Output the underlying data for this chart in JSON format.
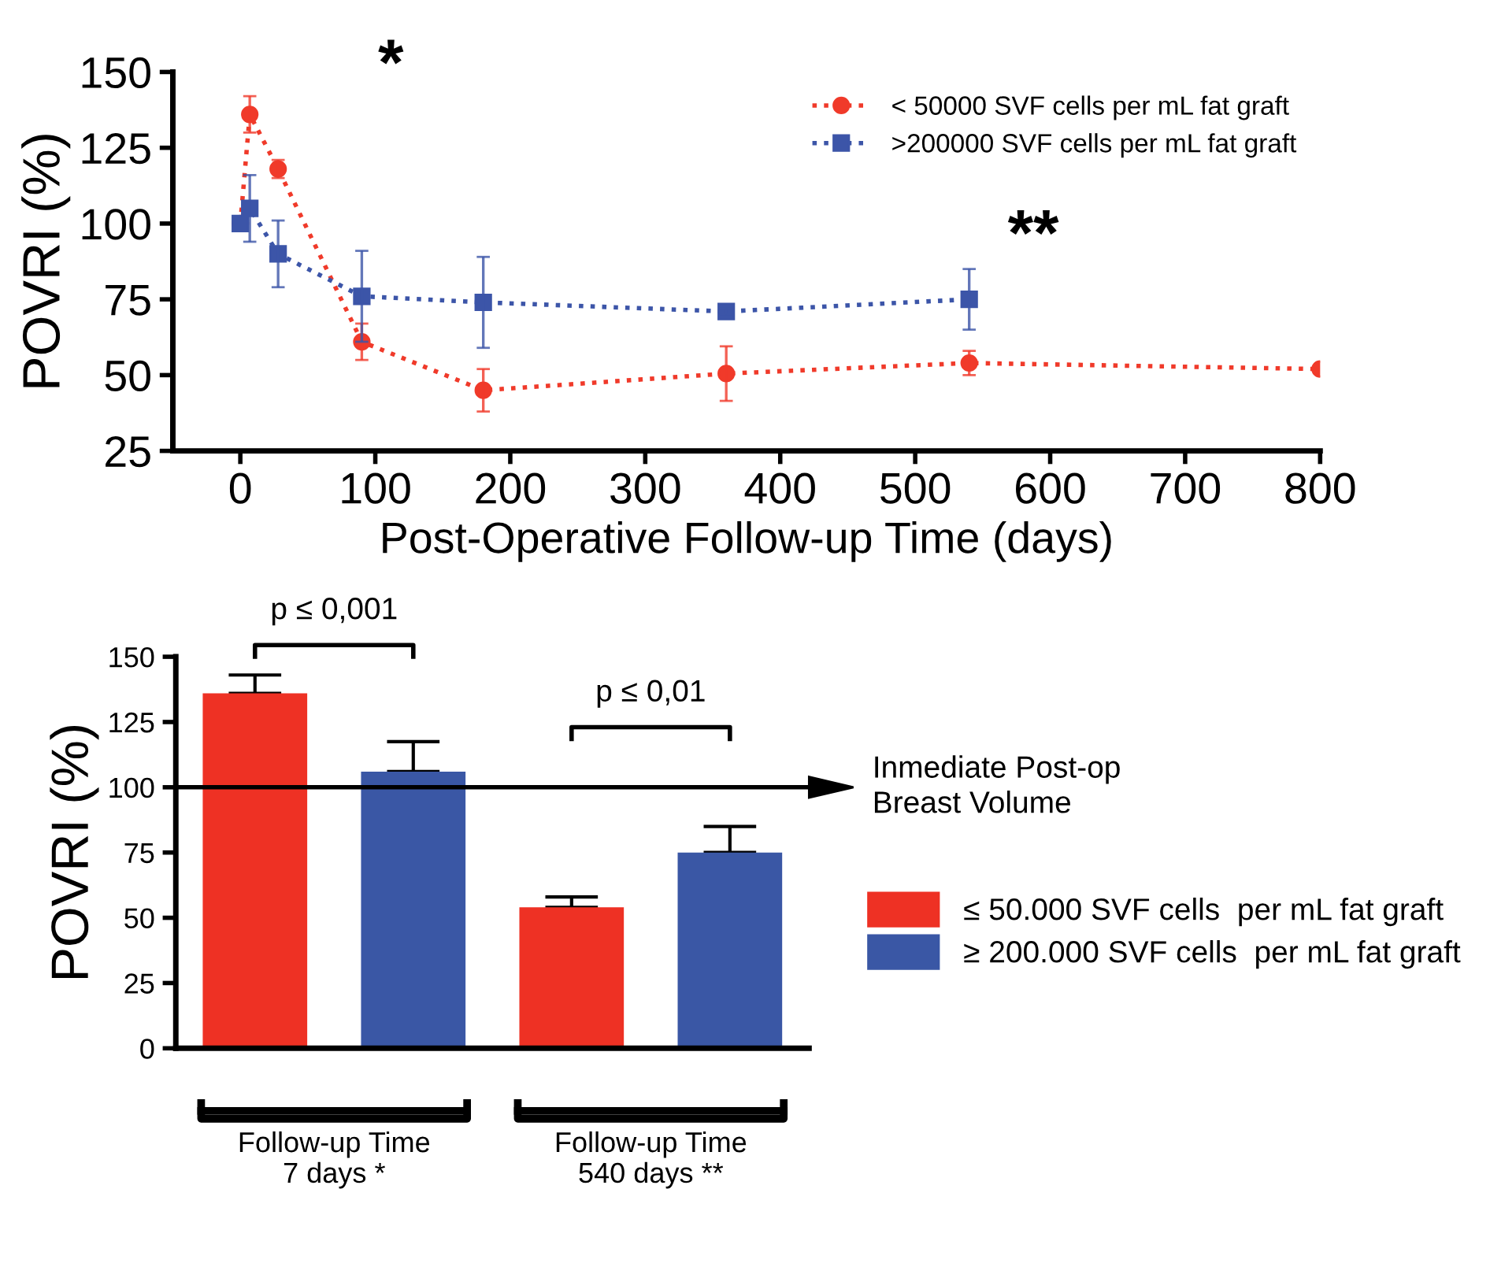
{
  "chart_data": [
    {
      "type": "line",
      "xlabel": "Post-Operative Follow-up Time (days)",
      "ylabel": "POVRI (%)",
      "xlim": [
        -50,
        800
      ],
      "xticks": [
        0,
        100,
        200,
        300,
        400,
        500,
        600,
        700,
        800
      ],
      "ylim": [
        25,
        150
      ],
      "yticks": [
        25,
        50,
        75,
        100,
        125,
        150
      ],
      "legend": "top right",
      "line_style": "dotted",
      "grid": false,
      "annotations": [
        "*",
        "**"
      ],
      "series": [
        {
          "name": "< 50000 SVF cells per mL fat graft",
          "color": "#f03a2a",
          "marker": "circle",
          "x": [
            0,
            7,
            28,
            90,
            180,
            360,
            540,
            800
          ],
          "values": [
            100,
            136,
            118,
            61,
            45,
            50.5,
            54,
            52
          ],
          "errors": [
            null,
            6,
            3,
            6,
            7,
            9,
            4,
            null
          ]
        },
        {
          "name": ">200000 SVF cells per mL fat graft",
          "color": "#3c55a8",
          "marker": "square",
          "x": [
            0,
            7,
            28,
            90,
            180,
            360,
            540
          ],
          "values": [
            100,
            105,
            90,
            76,
            74,
            71,
            75
          ],
          "errors": [
            null,
            11,
            11,
            15,
            15,
            1,
            10
          ]
        }
      ]
    },
    {
      "type": "bar",
      "ylabel": "POVRI (%)",
      "categories": [
        "Follow-up Time\n7 days *",
        "Follow-up Time\n540 days **"
      ],
      "ylim": [
        0,
        150
      ],
      "yticks": [
        0,
        25,
        50,
        75,
        100,
        125,
        150
      ],
      "legend": "right",
      "grid": false,
      "ref_lines": [
        {
          "axis": "y",
          "value": 100,
          "label": "Inmediate Post-op\nBreast Volume",
          "color": "#000000"
        }
      ],
      "annotations": [
        "p ≤ 0,001",
        "p ≤ 0,01"
      ],
      "series": [
        {
          "name": "≤ 50.000 SVF cells  per mL fat graft",
          "color": "#ee3124",
          "values": [
            136,
            54
          ],
          "errors": [
            [
              136,
              143
            ],
            [
              54,
              58
            ]
          ]
        },
        {
          "name": "≥ 200.000 SVF cells  per mL fat graft",
          "color": "#3a57a5",
          "values": [
            106,
            75
          ],
          "errors": [
            [
              106,
              117.5
            ],
            [
              75,
              85
            ]
          ]
        }
      ]
    }
  ]
}
